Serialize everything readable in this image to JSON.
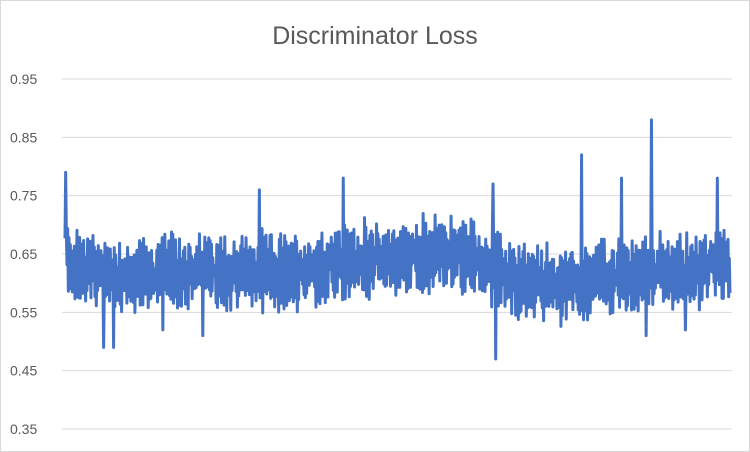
{
  "chart_data": {
    "type": "line",
    "title": "Discriminator Loss",
    "xlabel": "",
    "ylabel": "",
    "ylim": [
      0.35,
      0.95
    ],
    "yticks": [
      "0.95",
      "0.85",
      "0.75",
      "0.65",
      "0.55",
      "0.45",
      "0.35"
    ],
    "grid": true,
    "legend": "none",
    "series": [
      {
        "name": "Discriminator Loss",
        "color": "#4472c4",
        "x_count": 1000,
        "trend": {
          "x": [
            0,
            50,
            100,
            150,
            200,
            250,
            300,
            350,
            400,
            450,
            500,
            550,
            600,
            650,
            700,
            750,
            800,
            850,
            900,
            950,
            999
          ],
          "y": [
            0.64,
            0.62,
            0.61,
            0.62,
            0.62,
            0.62,
            0.62,
            0.62,
            0.63,
            0.64,
            0.64,
            0.65,
            0.65,
            0.62,
            0.6,
            0.6,
            0.61,
            0.61,
            0.62,
            0.62,
            0.63
          ]
        },
        "spikes": [
          {
            "x": 1,
            "y": 0.79
          },
          {
            "x": 58,
            "y": 0.49
          },
          {
            "x": 73,
            "y": 0.49
          },
          {
            "x": 147,
            "y": 0.52
          },
          {
            "x": 207,
            "y": 0.51
          },
          {
            "x": 292,
            "y": 0.76
          },
          {
            "x": 418,
            "y": 0.78
          },
          {
            "x": 643,
            "y": 0.77
          },
          {
            "x": 647,
            "y": 0.47
          },
          {
            "x": 776,
            "y": 0.82
          },
          {
            "x": 836,
            "y": 0.78
          },
          {
            "x": 873,
            "y": 0.51
          },
          {
            "x": 881,
            "y": 0.88
          },
          {
            "x": 932,
            "y": 0.52
          },
          {
            "x": 980,
            "y": 0.78
          }
        ],
        "noise_amplitude": 0.05
      }
    ]
  }
}
